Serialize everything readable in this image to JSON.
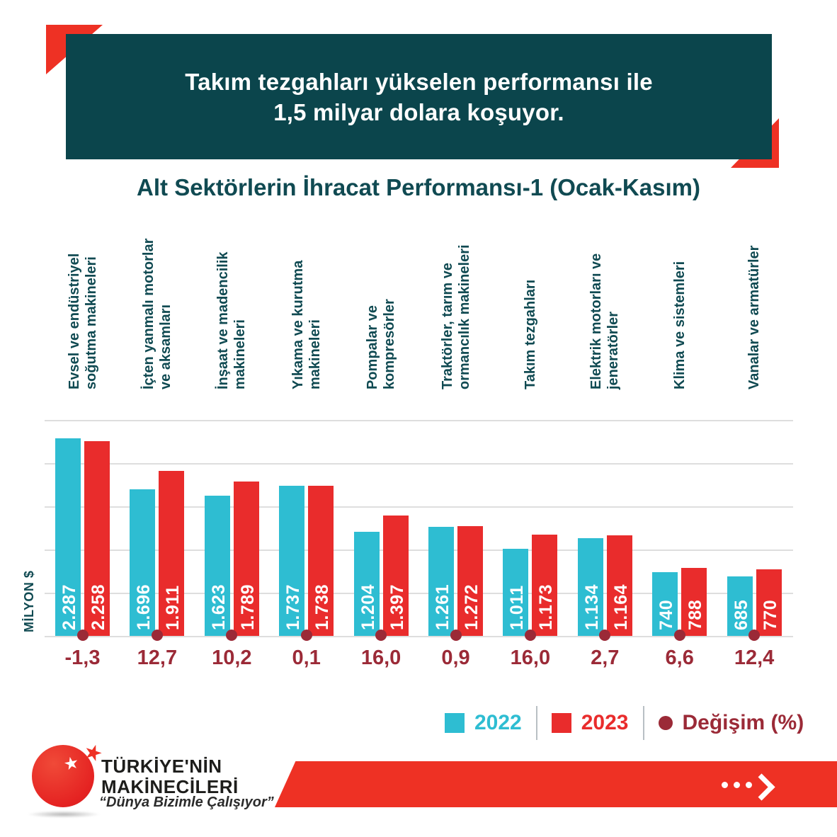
{
  "header": {
    "line1": "Takım tezgahları yükselen performansı ile",
    "line2": "1,5 milyar dolara koşuyor."
  },
  "chart_title": "Alt Sektörlerin İhracat Performansı-1 (Ocak-Kasım)",
  "axis": {
    "y_label": "MİLYON $"
  },
  "legend": {
    "y2022": "2022",
    "y2023": "2023",
    "change": "Değişim (%)"
  },
  "footer": {
    "brand_line1": "TÜRKİYE'NİN",
    "brand_line2": "MAKİNECİLERİ",
    "slogan": "“Dünya Bizimle Çalışıyor”"
  },
  "colors": {
    "header_teal": "#0b454c",
    "dark_teal": "#104a52",
    "series_2022_teal": "#2ebdd2",
    "series_2023_red": "#e92c2c",
    "accent_red": "#ee3124",
    "change_maroon": "#9b2a37"
  },
  "chart_data": {
    "type": "bar",
    "title": "Alt Sektörlerin İhracat Performansı-1 (Ocak-Kasım)",
    "ylabel": "MİLYON $",
    "ylim": [
      0,
      2500
    ],
    "gridline_step": 500,
    "grid": true,
    "legend_position": "bottom",
    "categories": [
      "Evsel ve endüstriyel soğutma makineleri",
      "İçten yanmalı motorlar ve aksamları",
      "İnşaat ve madencilik makineleri",
      "Yıkama ve kurutma makineleri",
      "Pompalar ve kompresörler",
      "Traktörler, tarım ve ormancılık makineleri",
      "Takım tezgahları",
      "Elektrik motorları ve jeneratörler",
      "Klima ve sistemleri",
      "Vanalar ve armatürler"
    ],
    "category_lines": [
      [
        "Evsel ve endüstriyel",
        "soğutma makineleri"
      ],
      [
        "İçten yanmalı motorlar",
        "ve aksamları"
      ],
      [
        "İnşaat ve madencilik",
        "makineleri"
      ],
      [
        "Yıkama ve kurutma",
        "makineleri"
      ],
      [
        "Pompalar ve",
        "kompresörler"
      ],
      [
        "Traktörler, tarım ve",
        "ormancılık makineleri"
      ],
      [
        "Takım tezgahları"
      ],
      [
        "Elektrik motorları ve",
        "jeneratörler"
      ],
      [
        "Klima ve sistemleri"
      ],
      [
        "Vanalar ve armatürler"
      ]
    ],
    "series": [
      {
        "name": "2022",
        "values": [
          2287,
          1696,
          1623,
          1737,
          1204,
          1261,
          1011,
          1134,
          740,
          685
        ],
        "labels": [
          "2.287",
          "1.696",
          "1.623",
          "1.737",
          "1.204",
          "1.261",
          "1.011",
          "1.134",
          "740",
          "685"
        ]
      },
      {
        "name": "2023",
        "values": [
          2258,
          1911,
          1789,
          1738,
          1397,
          1272,
          1173,
          1164,
          788,
          770
        ],
        "labels": [
          "2.258",
          "1.911",
          "1.789",
          "1.738",
          "1.397",
          "1.272",
          "1.173",
          "1.164",
          "788",
          "770"
        ]
      }
    ],
    "change_pct": [
      -1.3,
      12.7,
      10.2,
      0.1,
      16.0,
      0.9,
      16.0,
      2.7,
      6.6,
      12.4
    ],
    "change_labels": [
      "-1,3",
      "12,7",
      "10,2",
      "0,1",
      "16,0",
      "0,9",
      "16,0",
      "2,7",
      "6,6",
      "12,4"
    ]
  }
}
